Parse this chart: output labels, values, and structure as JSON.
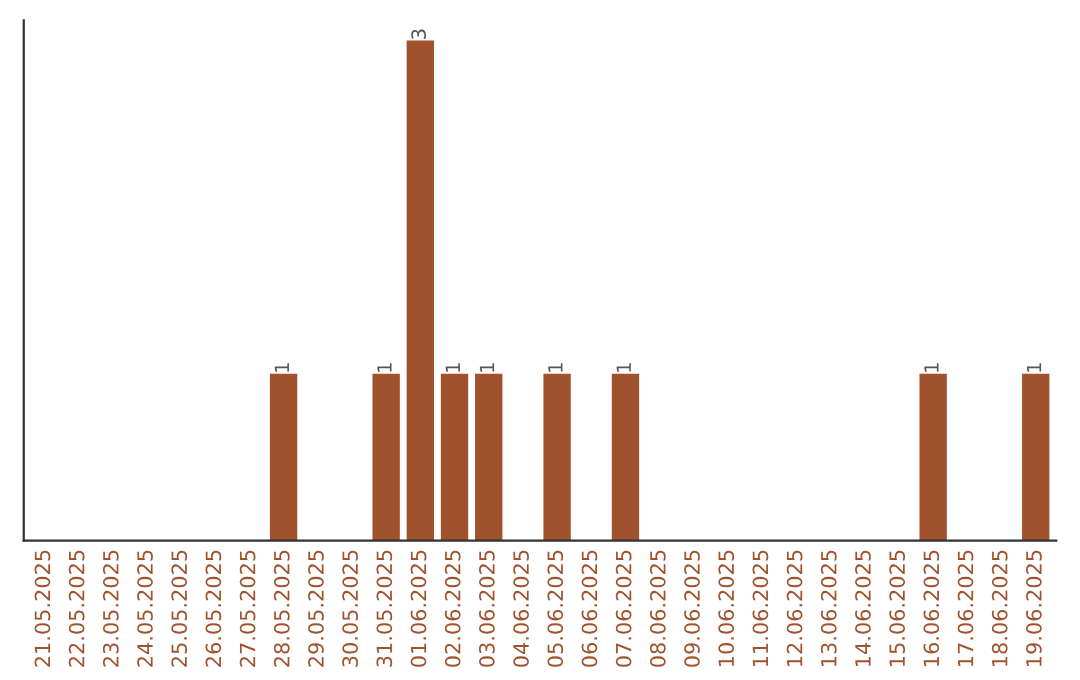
{
  "chart_data": {
    "type": "bar",
    "categories": [
      "21.05.2025",
      "22.05.2025",
      "23.05.2025",
      "24.05.2025",
      "25.05.2025",
      "26.05.2025",
      "27.05.2025",
      "28.05.2025",
      "29.05.2025",
      "30.05.2025",
      "31.05.2025",
      "01.06.2025",
      "02.06.2025",
      "03.06.2025",
      "04.06.2025",
      "05.06.2025",
      "06.06.2025",
      "07.06.2025",
      "08.06.2025",
      "09.06.2025",
      "10.06.2025",
      "11.06.2025",
      "12.06.2025",
      "13.06.2025",
      "14.06.2025",
      "15.06.2025",
      "16.06.2025",
      "17.06.2025",
      "18.06.2025",
      "19.06.2025"
    ],
    "values": [
      0,
      0,
      0,
      0,
      0,
      0,
      0,
      1,
      0,
      0,
      1,
      3,
      1,
      1,
      0,
      1,
      0,
      1,
      0,
      0,
      0,
      0,
      0,
      0,
      0,
      0,
      1,
      0,
      0,
      1
    ],
    "value_labels": [
      null,
      null,
      null,
      null,
      null,
      null,
      null,
      "1",
      null,
      null,
      "1",
      "3",
      "1",
      "1",
      null,
      "1",
      null,
      "1",
      null,
      null,
      null,
      null,
      null,
      null,
      null,
      null,
      "1",
      null,
      null,
      "1"
    ],
    "color": "#a0522d",
    "ylim": [
      0,
      3.12
    ],
    "tick_labels": "x",
    "grid": false,
    "legend": false
  }
}
